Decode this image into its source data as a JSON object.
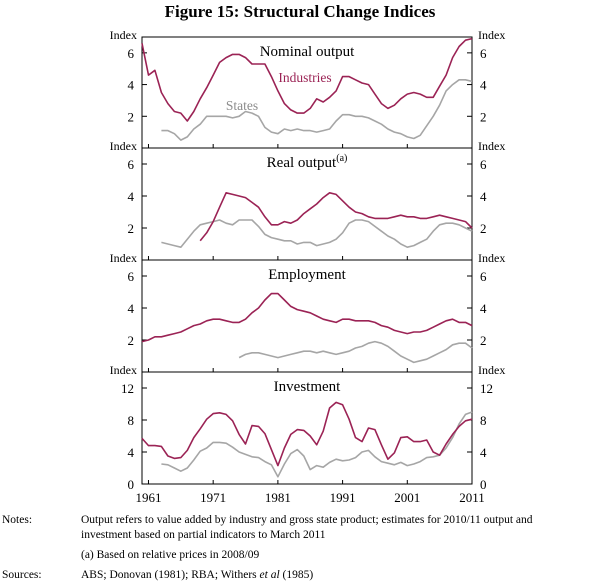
{
  "figure_title": "Figure 15: Structural Change Indices",
  "chart_data": [
    {
      "type": "line",
      "title": "Nominal output",
      "ylabel_left": "Index",
      "ylabel_right": "Index",
      "ylim": [
        0,
        7
      ],
      "yticks": [
        2,
        4,
        6
      ],
      "series": [
        {
          "name": "Industries",
          "color": "#9b2355",
          "label": "Industries",
          "x": [
            1960,
            1961,
            1962,
            1963,
            1964,
            1965,
            1966,
            1967,
            1968,
            1969,
            1970,
            1971,
            1972,
            1973,
            1974,
            1975,
            1976,
            1977,
            1978,
            1979,
            1980,
            1981,
            1982,
            1983,
            1984,
            1985,
            1986,
            1987,
            1988,
            1989,
            1990,
            1991,
            1992,
            1993,
            1994,
            1995,
            1996,
            1997,
            1998,
            1999,
            2000,
            2001,
            2002,
            2003,
            2004,
            2005,
            2006,
            2007,
            2008,
            2009,
            2010,
            2011
          ],
          "y": [
            6.6,
            4.6,
            4.9,
            3.5,
            2.8,
            2.3,
            2.2,
            1.7,
            2.3,
            3.1,
            3.8,
            4.6,
            5.4,
            5.7,
            5.9,
            5.9,
            5.7,
            5.3,
            5.3,
            5.3,
            4.5,
            3.6,
            2.8,
            2.4,
            2.2,
            2.2,
            2.5,
            3.1,
            2.9,
            3.2,
            3.6,
            4.5,
            4.5,
            4.3,
            4.1,
            4.0,
            3.4,
            2.8,
            2.5,
            2.7,
            3.1,
            3.4,
            3.5,
            3.4,
            3.2,
            3.2,
            3.9,
            4.6,
            5.7,
            6.4,
            6.8,
            6.9
          ]
        },
        {
          "name": "States",
          "color": "#a6a6a6",
          "label": "States",
          "x": [
            1963,
            1964,
            1965,
            1966,
            1967,
            1968,
            1969,
            1970,
            1971,
            1972,
            1973,
            1974,
            1975,
            1976,
            1977,
            1978,
            1979,
            1980,
            1981,
            1982,
            1983,
            1984,
            1985,
            1986,
            1987,
            1988,
            1989,
            1990,
            1991,
            1992,
            1993,
            1994,
            1995,
            1996,
            1997,
            1998,
            1999,
            2000,
            2001,
            2002,
            2003,
            2004,
            2005,
            2006,
            2007,
            2008,
            2009,
            2010,
            2011
          ],
          "y": [
            1.1,
            1.1,
            0.9,
            0.5,
            0.7,
            1.2,
            1.5,
            2.0,
            2.0,
            2.0,
            2.0,
            1.9,
            2.0,
            2.3,
            2.2,
            2.0,
            1.3,
            1.0,
            0.9,
            1.2,
            1.1,
            1.2,
            1.1,
            1.1,
            1.0,
            1.1,
            1.2,
            1.7,
            2.1,
            2.1,
            2.0,
            2.0,
            1.9,
            1.7,
            1.5,
            1.2,
            1.0,
            0.9,
            0.7,
            0.6,
            0.8,
            1.4,
            2.0,
            2.7,
            3.6,
            4.0,
            4.3,
            4.3,
            4.2
          ]
        }
      ]
    },
    {
      "type": "line",
      "title": "Real output",
      "title_superscript": "(a)",
      "ylabel_left": "Index",
      "ylabel_right": "Index",
      "ylim": [
        0,
        7
      ],
      "yticks": [
        2,
        4,
        6
      ],
      "series": [
        {
          "name": "Industries",
          "color": "#9b2355",
          "x": [
            1969,
            1970,
            1971,
            1972,
            1973,
            1974,
            1975,
            1976,
            1977,
            1978,
            1979,
            1980,
            1981,
            1982,
            1983,
            1984,
            1985,
            1986,
            1987,
            1988,
            1989,
            1990,
            1991,
            1992,
            1993,
            1994,
            1995,
            1996,
            1997,
            1998,
            1999,
            2000,
            2001,
            2002,
            2003,
            2004,
            2005,
            2006,
            2007,
            2008,
            2009,
            2010,
            2011
          ],
          "y": [
            1.2,
            1.7,
            2.4,
            3.3,
            4.2,
            4.1,
            4.0,
            3.9,
            3.6,
            3.3,
            2.7,
            2.2,
            2.2,
            2.4,
            2.3,
            2.5,
            2.9,
            3.2,
            3.5,
            3.9,
            4.2,
            4.1,
            3.7,
            3.3,
            3.0,
            2.9,
            2.7,
            2.6,
            2.6,
            2.6,
            2.7,
            2.8,
            2.7,
            2.7,
            2.6,
            2.6,
            2.7,
            2.8,
            2.7,
            2.6,
            2.5,
            2.4,
            2.0
          ]
        },
        {
          "name": "States",
          "color": "#a6a6a6",
          "x": [
            1963,
            1964,
            1965,
            1966,
            1967,
            1968,
            1969,
            1970,
            1971,
            1972,
            1973,
            1974,
            1975,
            1976,
            1977,
            1978,
            1979,
            1980,
            1981,
            1982,
            1983,
            1984,
            1985,
            1986,
            1987,
            1988,
            1989,
            1990,
            1991,
            1992,
            1993,
            1994,
            1995,
            1996,
            1997,
            1998,
            1999,
            2000,
            2001,
            2002,
            2003,
            2004,
            2005,
            2006,
            2007,
            2008,
            2009,
            2010,
            2011
          ],
          "y": [
            1.1,
            1.0,
            0.9,
            0.8,
            1.3,
            1.8,
            2.2,
            2.3,
            2.4,
            2.5,
            2.3,
            2.2,
            2.5,
            2.5,
            2.5,
            2.1,
            1.6,
            1.4,
            1.3,
            1.2,
            1.2,
            1.0,
            1.1,
            1.1,
            0.9,
            1.0,
            1.1,
            1.3,
            1.7,
            2.3,
            2.5,
            2.5,
            2.4,
            2.1,
            1.8,
            1.5,
            1.3,
            1.0,
            0.8,
            0.9,
            1.1,
            1.3,
            1.8,
            2.2,
            2.3,
            2.3,
            2.2,
            2.0,
            1.8
          ]
        }
      ]
    },
    {
      "type": "line",
      "title": "Employment",
      "ylabel_left": "Index",
      "ylabel_right": "Index",
      "ylim": [
        0,
        7
      ],
      "yticks": [
        2,
        4,
        6
      ],
      "series": [
        {
          "name": "Industries",
          "color": "#9b2355",
          "x": [
            1960,
            1961,
            1962,
            1963,
            1964,
            1965,
            1966,
            1967,
            1968,
            1969,
            1970,
            1971,
            1972,
            1973,
            1974,
            1975,
            1976,
            1977,
            1978,
            1979,
            1980,
            1981,
            1982,
            1983,
            1984,
            1985,
            1986,
            1987,
            1988,
            1989,
            1990,
            1991,
            1992,
            1993,
            1994,
            1995,
            1996,
            1997,
            1998,
            1999,
            2000,
            2001,
            2002,
            2003,
            2004,
            2005,
            2006,
            2007,
            2008,
            2009,
            2010,
            2011
          ],
          "y": [
            1.9,
            2.0,
            2.2,
            2.2,
            2.3,
            2.4,
            2.5,
            2.7,
            2.9,
            3.0,
            3.2,
            3.3,
            3.3,
            3.2,
            3.1,
            3.1,
            3.3,
            3.7,
            4.0,
            4.5,
            4.9,
            4.9,
            4.5,
            4.1,
            3.9,
            3.8,
            3.7,
            3.5,
            3.3,
            3.2,
            3.1,
            3.3,
            3.3,
            3.2,
            3.2,
            3.2,
            3.1,
            2.9,
            2.8,
            2.6,
            2.5,
            2.4,
            2.5,
            2.5,
            2.6,
            2.8,
            3.0,
            3.2,
            3.3,
            3.1,
            3.1,
            2.9
          ]
        },
        {
          "name": "States",
          "color": "#a6a6a6",
          "x": [
            1975,
            1976,
            1977,
            1978,
            1979,
            1980,
            1981,
            1982,
            1983,
            1984,
            1985,
            1986,
            1987,
            1988,
            1989,
            1990,
            1991,
            1992,
            1993,
            1994,
            1995,
            1996,
            1997,
            1998,
            1999,
            2000,
            2001,
            2002,
            2003,
            2004,
            2005,
            2006,
            2007,
            2008,
            2009,
            2010,
            2011
          ],
          "y": [
            0.9,
            1.1,
            1.2,
            1.2,
            1.1,
            1.0,
            0.9,
            1.0,
            1.1,
            1.2,
            1.3,
            1.3,
            1.2,
            1.3,
            1.2,
            1.1,
            1.2,
            1.3,
            1.5,
            1.6,
            1.8,
            1.9,
            1.8,
            1.6,
            1.3,
            1.0,
            0.8,
            0.6,
            0.7,
            0.8,
            1.0,
            1.2,
            1.4,
            1.7,
            1.8,
            1.8,
            1.5
          ]
        }
      ]
    },
    {
      "type": "line",
      "title": "Investment",
      "ylabel_left": "Index",
      "ylabel_right": "Index",
      "ylim": [
        0,
        14
      ],
      "yticks": [
        0,
        4,
        8,
        12
      ],
      "series": [
        {
          "name": "Industries",
          "color": "#9b2355",
          "x": [
            1960,
            1961,
            1962,
            1963,
            1964,
            1965,
            1966,
            1967,
            1968,
            1969,
            1970,
            1971,
            1972,
            1973,
            1974,
            1975,
            1976,
            1977,
            1978,
            1979,
            1980,
            1981,
            1982,
            1983,
            1984,
            1985,
            1986,
            1987,
            1988,
            1989,
            1990,
            1991,
            1992,
            1993,
            1994,
            1995,
            1996,
            1997,
            1998,
            1999,
            2000,
            2001,
            2002,
            2003,
            2004,
            2005,
            2006,
            2007,
            2008,
            2009,
            2010,
            2011
          ],
          "y": [
            5.7,
            4.8,
            4.8,
            4.7,
            3.5,
            3.2,
            3.3,
            4.2,
            5.8,
            6.9,
            8.1,
            8.8,
            8.9,
            8.7,
            7.9,
            6.2,
            5.0,
            7.3,
            7.2,
            6.3,
            4.3,
            2.3,
            4.5,
            6.2,
            6.8,
            6.7,
            6.0,
            4.9,
            6.6,
            9.5,
            10.2,
            9.9,
            8.1,
            5.8,
            5.3,
            7.0,
            6.8,
            4.9,
            3.1,
            3.9,
            5.8,
            5.9,
            5.3,
            5.3,
            5.5,
            4.0,
            3.6,
            5.0,
            6.2,
            7.2,
            7.9,
            8.1
          ]
        },
        {
          "name": "States",
          "color": "#a6a6a6",
          "x": [
            1963,
            1964,
            1965,
            1966,
            1967,
            1968,
            1969,
            1970,
            1971,
            1972,
            1973,
            1974,
            1975,
            1976,
            1977,
            1978,
            1979,
            1980,
            1981,
            1982,
            1983,
            1984,
            1985,
            1986,
            1987,
            1988,
            1989,
            1990,
            1991,
            1992,
            1993,
            1994,
            1995,
            1996,
            1997,
            1998,
            1999,
            2000,
            2001,
            2002,
            2003,
            2004,
            2005,
            2006,
            2007,
            2008,
            2009,
            2010,
            2011
          ],
          "y": [
            2.5,
            2.4,
            2.0,
            1.6,
            2.0,
            3.0,
            4.1,
            4.5,
            5.2,
            5.2,
            5.1,
            4.6,
            4.0,
            3.7,
            3.4,
            3.3,
            2.8,
            2.4,
            0.9,
            2.5,
            3.8,
            4.3,
            3.5,
            1.8,
            2.3,
            2.1,
            2.7,
            3.1,
            2.9,
            3.0,
            3.3,
            4.0,
            4.2,
            3.4,
            2.8,
            2.6,
            2.4,
            2.7,
            2.3,
            2.5,
            2.8,
            3.3,
            3.4,
            3.6,
            4.5,
            5.8,
            7.5,
            8.7,
            9.0
          ]
        }
      ]
    }
  ],
  "x_axis": {
    "xlim": [
      1960,
      2011
    ],
    "ticks": [
      1961,
      1971,
      1981,
      1991,
      2001,
      2011
    ]
  },
  "notes": {
    "notes_label": "Notes:",
    "notes_line1": "Output refers to value added by industry and gross state product; estimates for 2010/11 output and",
    "notes_line2": "investment based on partial indicators to March 2011",
    "footnote": "(a) Based on relative prices in 2008/09",
    "sources_label": "Sources:",
    "sources_text_pre": "ABS; Donovan (1981); RBA; Withers ",
    "sources_text_ital": "et al",
    "sources_text_post": " (1985)"
  }
}
